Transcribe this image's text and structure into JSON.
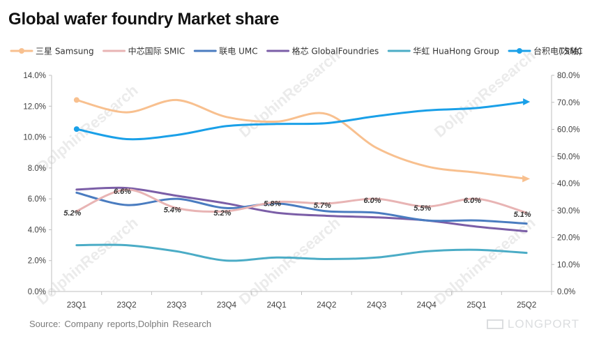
{
  "title": "Global wafer foundry Market share",
  "source": "Source: Company reports,Dolphin Research",
  "watermark": "DolphinResearch",
  "brand": "LONGPORT",
  "chart_data": {
    "type": "line",
    "categories": [
      "23Q1",
      "23Q2",
      "23Q3",
      "23Q4",
      "24Q1",
      "24Q2",
      "24Q3",
      "24Q4",
      "25Q1",
      "25Q2"
    ],
    "y_left": {
      "range": [
        0,
        14
      ],
      "step": 2,
      "format": "percent1",
      "ticks": [
        "0.0%",
        "2.0%",
        "4.0%",
        "6.0%",
        "8.0%",
        "10.0%",
        "12.0%",
        "14.0%"
      ]
    },
    "y_right": {
      "range": [
        0,
        80
      ],
      "step": 10,
      "format": "percent1",
      "ticks": [
        "0.0%",
        "10.0%",
        "20.0%",
        "30.0%",
        "40.0%",
        "50.0%",
        "60.0%",
        "70.0%",
        "80.0%"
      ]
    },
    "grid": false,
    "legend_position": "top",
    "series": [
      {
        "name": "三星 Samsung",
        "axis": "left",
        "color": "#f8c08f",
        "marker": "circle",
        "marker_points": "ends",
        "values": [
          12.4,
          11.6,
          12.4,
          11.3,
          11.0,
          11.5,
          9.3,
          8.1,
          7.7,
          7.3
        ]
      },
      {
        "name": "中芯国际 SMIC",
        "axis": "left",
        "color": "#e8b4b4",
        "marker": "none",
        "values": [
          5.2,
          6.6,
          5.4,
          5.2,
          5.8,
          5.7,
          6.0,
          5.5,
          6.0,
          5.1
        ],
        "labels": [
          "5.2%",
          "6.6%",
          "5.4%",
          "5.2%",
          "5.8%",
          "5.7%",
          "6.0%",
          "5.5%",
          "6.0%",
          "5.1%"
        ]
      },
      {
        "name": "联电 UMC",
        "axis": "left",
        "color": "#4a7cc0",
        "marker": "none",
        "values": [
          6.4,
          5.6,
          6.0,
          5.4,
          5.7,
          5.2,
          5.1,
          4.6,
          4.6,
          4.4
        ]
      },
      {
        "name": "格芯 GlobalFoundries",
        "axis": "left",
        "color": "#7b5ea7",
        "marker": "none",
        "values": [
          6.6,
          6.7,
          6.2,
          5.7,
          5.1,
          4.9,
          4.8,
          4.6,
          4.2,
          3.9
        ]
      },
      {
        "name": "华虹 HuaHong Group",
        "axis": "left",
        "color": "#4bacc6",
        "marker": "none",
        "values": [
          3.0,
          3.0,
          2.6,
          2.0,
          2.2,
          2.1,
          2.2,
          2.6,
          2.7,
          2.5
        ]
      },
      {
        "name": "台积电(次轴)",
        "axis": "right",
        "color": "#1aa0e8",
        "marker": "circle",
        "marker_points": "ends",
        "values": [
          60.1,
          56.4,
          57.9,
          61.2,
          62.0,
          62.3,
          64.9,
          67.0,
          67.9,
          70.2
        ]
      }
    ],
    "right_axis_title": "TSMC"
  }
}
